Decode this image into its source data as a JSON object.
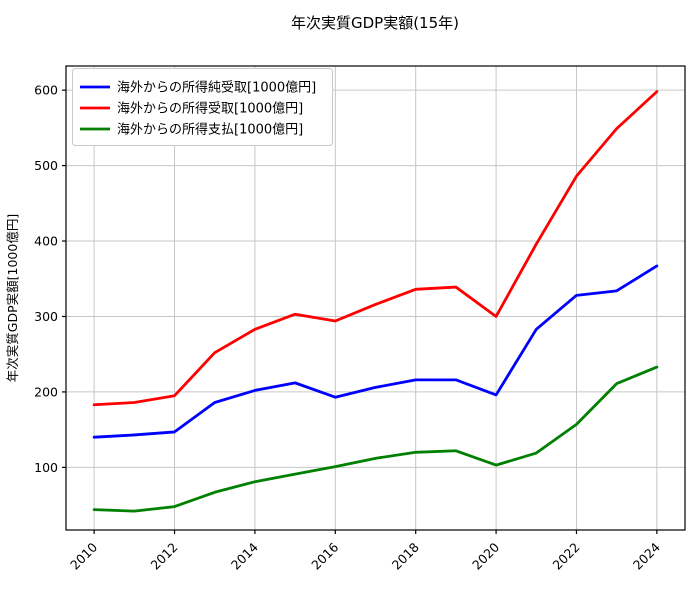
{
  "figure_title": "年次実質GDP実額(15年)",
  "chart_data": {
    "type": "line",
    "title": "年次実質GDP実額(15年)",
    "xlabel": "",
    "ylabel": "年次実質GDP実額[1000億円]",
    "x": [
      2010,
      2011,
      2012,
      2013,
      2014,
      2015,
      2016,
      2017,
      2018,
      2019,
      2020,
      2021,
      2022,
      2023,
      2024
    ],
    "series": [
      {
        "name": "海外からの所得純受取[1000億円]",
        "color": "#0000ff",
        "values": [
          140,
          143,
          147,
          186,
          202,
          212,
          193,
          206,
          216,
          216,
          196,
          283,
          328,
          334,
          367
        ]
      },
      {
        "name": "海外からの所得受取[1000億円]",
        "color": "#ff0000",
        "values": [
          183,
          186,
          195,
          252,
          283,
          303,
          294,
          316,
          336,
          339,
          300,
          396,
          486,
          549,
          598
        ]
      },
      {
        "name": "海外からの所得支払[1000億円]",
        "color": "#008000",
        "values": [
          44,
          42,
          48,
          67,
          81,
          91,
          101,
          112,
          120,
          122,
          103,
          119,
          157,
          211,
          233
        ]
      }
    ],
    "xticks": [
      2010,
      2012,
      2014,
      2016,
      2018,
      2020,
      2022,
      2024
    ],
    "yticks": [
      100,
      200,
      300,
      400,
      500,
      600
    ],
    "xlim": [
      2009.3,
      2024.7
    ],
    "ylim": [
      17,
      632
    ],
    "grid": true,
    "grid_color": "#c6c6c6",
    "background": "#ffffff",
    "legend_position": "upper-left"
  }
}
